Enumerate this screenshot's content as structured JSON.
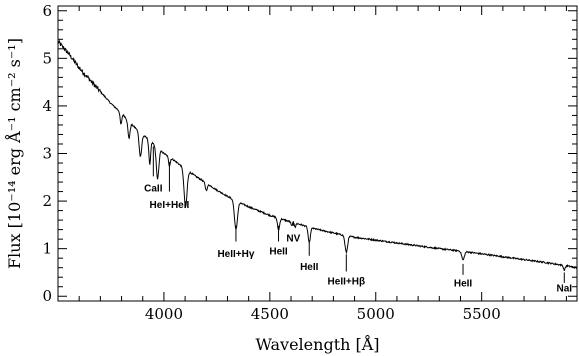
{
  "chart_data": {
    "type": "line",
    "xlabel": "Wavelength [Å]",
    "ylabel": "Flux [10⁻¹⁴ erg Å⁻¹ cm⁻² s⁻¹]",
    "xlim": [
      3500,
      5950
    ],
    "ylim": [
      -0.1,
      6.1
    ],
    "xticks": [
      4000,
      4500,
      5000,
      5500
    ],
    "yticks": [
      0,
      1,
      2,
      3,
      4,
      5,
      6
    ],
    "continuum": [
      [
        3500,
        5.35
      ],
      [
        3550,
        5.1
      ],
      [
        3600,
        4.8
      ],
      [
        3650,
        4.55
      ],
      [
        3700,
        4.3
      ],
      [
        3750,
        4.05
      ],
      [
        3800,
        3.85
      ],
      [
        3850,
        3.6
      ],
      [
        3900,
        3.4
      ],
      [
        3950,
        3.2
      ],
      [
        4000,
        3.0
      ],
      [
        4050,
        2.85
      ],
      [
        4100,
        2.68
      ],
      [
        4150,
        2.52
      ],
      [
        4200,
        2.38
      ],
      [
        4250,
        2.23
      ],
      [
        4300,
        2.1
      ],
      [
        4350,
        1.98
      ],
      [
        4400,
        1.88
      ],
      [
        4450,
        1.79
      ],
      [
        4500,
        1.7
      ],
      [
        4550,
        1.63
      ],
      [
        4600,
        1.56
      ],
      [
        4650,
        1.5
      ],
      [
        4700,
        1.43
      ],
      [
        4750,
        1.38
      ],
      [
        4800,
        1.33
      ],
      [
        4850,
        1.28
      ],
      [
        4900,
        1.24
      ],
      [
        5000,
        1.18
      ],
      [
        5100,
        1.12
      ],
      [
        5200,
        1.06
      ],
      [
        5300,
        1.0
      ],
      [
        5400,
        0.95
      ],
      [
        5500,
        0.89
      ],
      [
        5600,
        0.83
      ],
      [
        5700,
        0.77
      ],
      [
        5800,
        0.71
      ],
      [
        5900,
        0.64
      ],
      [
        5950,
        0.6
      ]
    ],
    "absorption_lines": [
      {
        "center": 3797,
        "depth": 0.25,
        "width": 4
      },
      {
        "center": 3835,
        "depth": 0.35,
        "width": 5
      },
      {
        "center": 3889,
        "depth": 0.5,
        "width": 6
      },
      {
        "center": 3933,
        "depth": 0.5,
        "width": 4
      },
      {
        "center": 3970,
        "depth": 0.65,
        "width": 6
      },
      {
        "center": 4026,
        "depth": 0.18,
        "width": 4
      },
      {
        "center": 4102,
        "depth": 0.8,
        "width": 7
      },
      {
        "center": 4200,
        "depth": 0.15,
        "width": 5
      },
      {
        "center": 4340,
        "depth": 0.6,
        "width": 7
      },
      {
        "center": 4541,
        "depth": 0.25,
        "width": 5
      },
      {
        "center": 4603,
        "depth": 0.08,
        "width": 3
      },
      {
        "center": 4620,
        "depth": 0.08,
        "width": 3
      },
      {
        "center": 4686,
        "depth": 0.33,
        "width": 5
      },
      {
        "center": 4861,
        "depth": 0.35,
        "width": 6
      },
      {
        "center": 5412,
        "depth": 0.18,
        "width": 6
      },
      {
        "center": 5890,
        "depth": 0.1,
        "width": 4
      }
    ],
    "annotations": [
      {
        "label": "CaII",
        "x": 3950,
        "y1": 3.15,
        "y2": 2.52,
        "ty": 2.2
      },
      {
        "label": "HeI+HeII",
        "x": 4026,
        "y1": 2.82,
        "y2": 2.2,
        "ty": 1.85
      },
      {
        "label": "HeII+Hγ",
        "x": 4340,
        "y1": 1.48,
        "y2": 1.15,
        "ty": 0.82
      },
      {
        "label": "HeII",
        "x": 4541,
        "y1": 1.48,
        "y2": 1.15,
        "ty": 0.88
      },
      {
        "label": "NV",
        "x": 4611,
        "y1": 1.58,
        "y2": 1.48,
        "ty": 1.15
      },
      {
        "label": "HeII",
        "x": 4686,
        "y1": 1.15,
        "y2": 0.85,
        "ty": 0.55
      },
      {
        "label": "HeII+Hβ",
        "x": 4861,
        "y1": 0.88,
        "y2": 0.52,
        "ty": 0.25
      },
      {
        "label": "HeII",
        "x": 5412,
        "y1": 0.68,
        "y2": 0.45,
        "ty": 0.2
      },
      {
        "label": "NaI",
        "x": 5890,
        "y1": 0.5,
        "y2": 0.28,
        "ty": 0.1
      }
    ]
  }
}
